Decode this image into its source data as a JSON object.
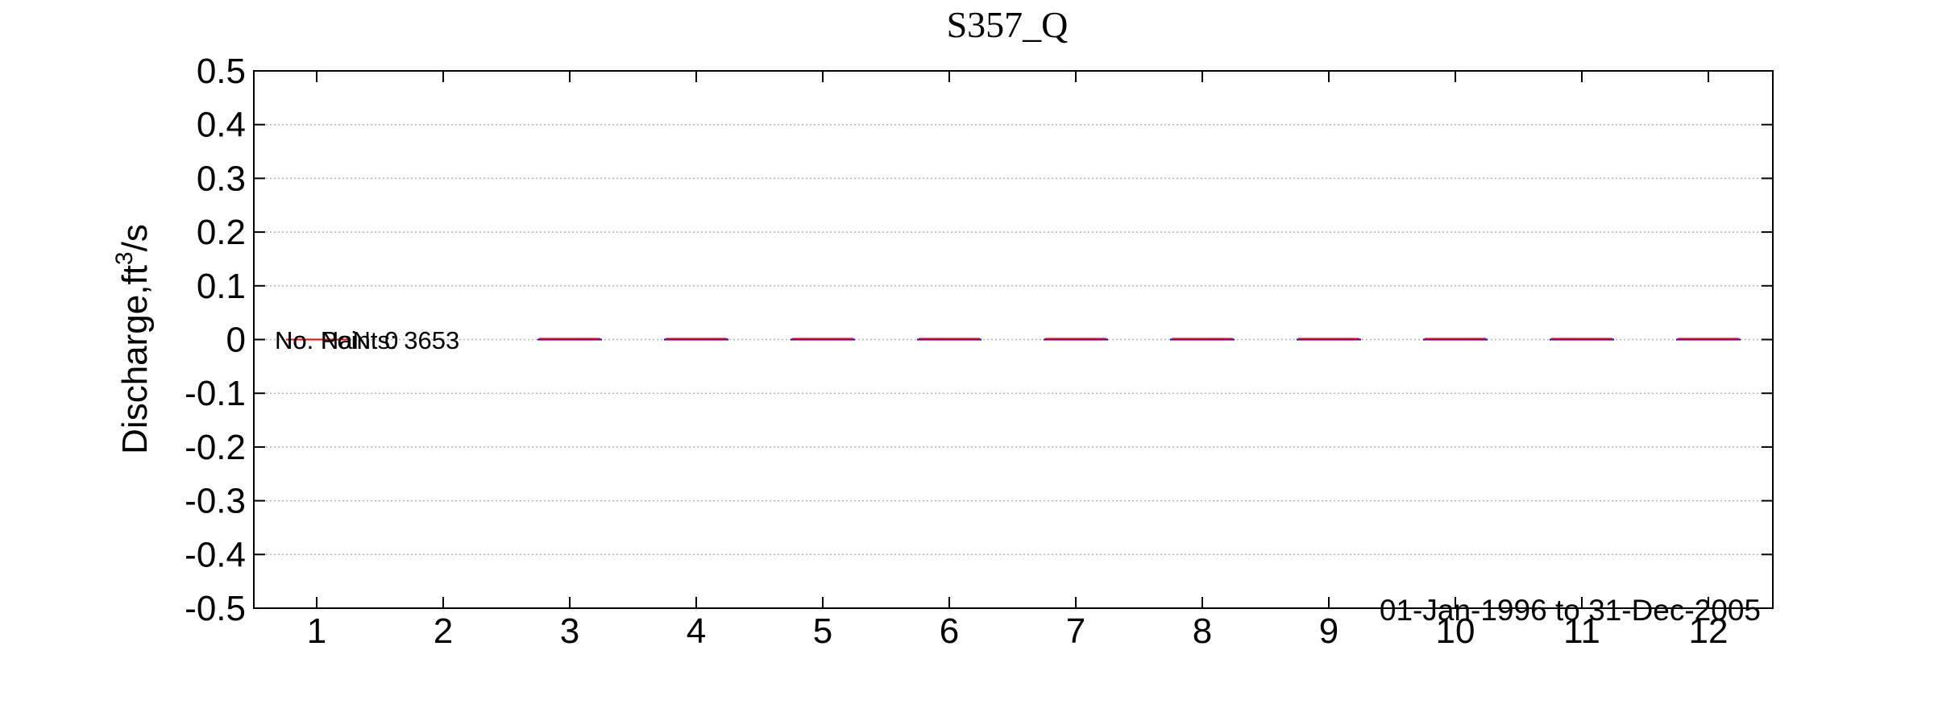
{
  "chart_data": {
    "type": "box",
    "title": "S357_Q",
    "ylabel_prefix": "Discharge,ft",
    "ylabel_sup": "3",
    "ylabel_suffix": "/s",
    "xlabel": "",
    "ylim": [
      -0.5,
      0.5
    ],
    "y_ticks": [
      "0.5",
      "0.4",
      "0.3",
      "0.2",
      "0.1",
      "0",
      "-0.1",
      "-0.2",
      "-0.3",
      "-0.4",
      "-0.5"
    ],
    "y_tick_values": [
      0.5,
      0.4,
      0.3,
      0.2,
      0.1,
      0,
      -0.1,
      -0.2,
      -0.3,
      -0.4,
      -0.5
    ],
    "categories": [
      "1",
      "2",
      "3",
      "4",
      "5",
      "6",
      "7",
      "8",
      "9",
      "10",
      "11",
      "12"
    ],
    "median_values": [
      0,
      0,
      0,
      0,
      0,
      0,
      0,
      0,
      0,
      0,
      0,
      0
    ],
    "grid": "horizontal dotted",
    "annotations": {
      "no_points": "No. Points: 3653",
      "nan": "No. NaN: 0",
      "date_range": "01-Jan-1996 to 31-Dec-2005"
    },
    "colors": {
      "median": "#ff0000",
      "box": "#0000ff",
      "grid": "#b4b4b4",
      "axis": "#000000"
    }
  }
}
